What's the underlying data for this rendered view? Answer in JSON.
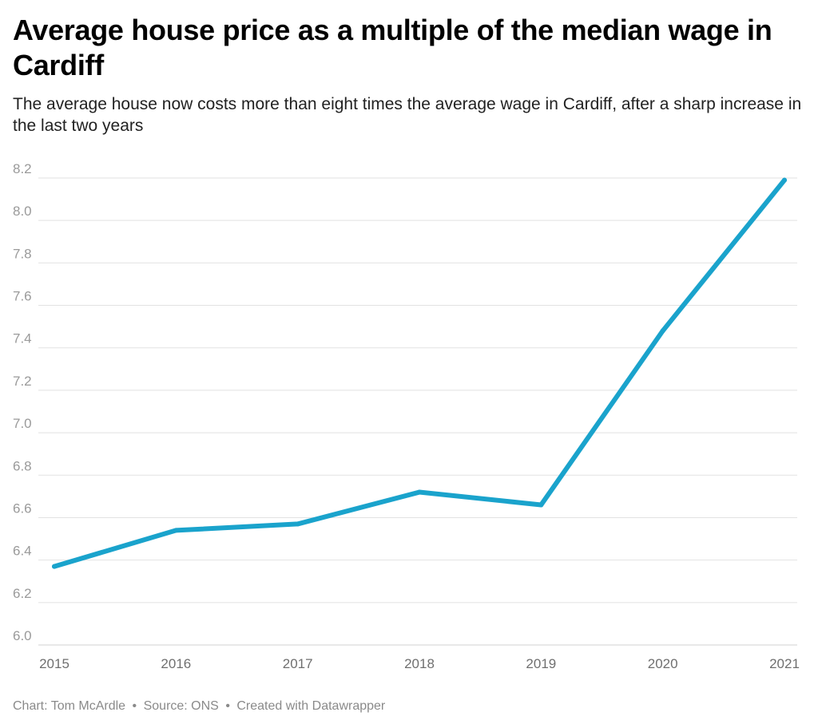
{
  "header": {
    "title": "Average house price as a multiple of the median wage in Cardiff",
    "subtitle": "The average house now costs more than eight times the average wage in Cardiff, after a sharp increase in the last two years"
  },
  "footer": {
    "chart_credit": "Chart: Tom McArdle",
    "source": "Source: ONS",
    "created_with": "Created with Datawrapper",
    "separator": "•"
  },
  "colors": {
    "line": "#1aa3cc",
    "grid": "#e2e2e2",
    "tick_text": "#9a9a9a",
    "year_text": "#6f6f6f"
  },
  "chart_data": {
    "type": "line",
    "title": "Average house price as a multiple of the median wage in Cardiff",
    "subtitle": "The average house now costs more than eight times the average wage in Cardiff, after a sharp increase in the last two years",
    "xlabel": "",
    "ylabel": "",
    "x": [
      "2015",
      "2016",
      "2017",
      "2018",
      "2019",
      "2020",
      "2021"
    ],
    "series": [
      {
        "values": [
          6.37,
          6.54,
          6.57,
          6.72,
          6.66,
          7.48,
          8.19
        ]
      }
    ],
    "ylim": [
      6.0,
      8.2
    ],
    "yticks": [
      "6.0",
      "6.2",
      "6.4",
      "6.6",
      "6.8",
      "7.0",
      "7.2",
      "7.4",
      "7.6",
      "7.8",
      "8.0",
      "8.2"
    ],
    "grid": true,
    "legend": "none"
  }
}
